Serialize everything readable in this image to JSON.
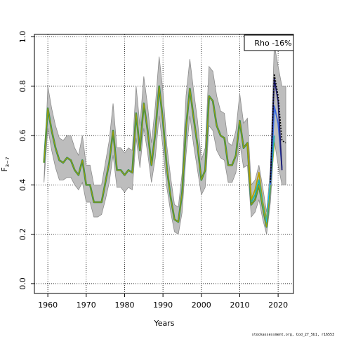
{
  "chart_data": {
    "type": "line",
    "title": "",
    "xlabel": "Years",
    "ylabel_main": "F",
    "ylabel_sub": "3−7",
    "xlim": [
      1956.5,
      2024
    ],
    "ylim": [
      -0.04,
      1.01
    ],
    "xticks": [
      1960,
      1970,
      1980,
      1990,
      2000,
      2010,
      2020
    ],
    "yticks": [
      0.0,
      0.2,
      0.4,
      0.6,
      0.8,
      1.0
    ],
    "ytick_labels": [
      "0.0",
      "0.2",
      "0.4",
      "0.6",
      "0.8",
      "1.0"
    ],
    "grid": true,
    "legend_text": "Rho -16%",
    "legend_position": "top-right",
    "footer": "stockassessment.org, Cod_27_5b1, r16553",
    "series": [
      {
        "name": "",
        "color": "#2e8b57",
        "x": [
          1959,
          1960,
          1961,
          1962,
          1963,
          1964,
          1965,
          1966,
          1967,
          1968,
          1969,
          1970,
          1971,
          1972,
          1973,
          1974,
          1975,
          1976,
          1977,
          1978,
          1979,
          1980,
          1981,
          1982,
          1983,
          1984,
          1985,
          1986,
          1987,
          1988,
          1989,
          1990,
          1991,
          1992,
          1993,
          1994,
          1995,
          1996,
          1997,
          1998,
          1999,
          2000,
          2001,
          2002,
          2003,
          2004,
          2005,
          2006,
          2007,
          2008,
          2009,
          2010,
          2011,
          2012,
          2013,
          2014,
          2015,
          2016,
          2017,
          2018
        ],
        "y": [
          0.49,
          0.71,
          0.62,
          0.55,
          0.5,
          0.49,
          0.51,
          0.5,
          0.46,
          0.44,
          0.5,
          0.4,
          0.4,
          0.33,
          0.33,
          0.33,
          0.41,
          0.49,
          0.62,
          0.46,
          0.46,
          0.44,
          0.46,
          0.45,
          0.69,
          0.54,
          0.73,
          0.62,
          0.48,
          0.61,
          0.8,
          0.66,
          0.47,
          0.35,
          0.26,
          0.25,
          0.37,
          0.63,
          0.79,
          0.67,
          0.56,
          0.42,
          0.46,
          0.76,
          0.74,
          0.64,
          0.6,
          0.59,
          0.48,
          0.48,
          0.52,
          0.66,
          0.55,
          0.57,
          0.32,
          0.34,
          0.4,
          0.31,
          0.23,
          0.4
        ]
      },
      {
        "name": "",
        "color": "#b8a100",
        "x": [
          2012,
          2013,
          2014,
          2015,
          2016,
          2017,
          2018,
          2019
        ],
        "y": [
          0.57,
          0.34,
          0.38,
          0.45,
          0.33,
          0.26,
          0.4,
          0.57
        ]
      },
      {
        "name": "",
        "color": "#20b2aa",
        "x": [
          2013,
          2014,
          2015,
          2016,
          2017,
          2018,
          2019
        ],
        "y": [
          0.33,
          0.36,
          0.42,
          0.32,
          0.24,
          0.4,
          0.6
        ]
      },
      {
        "name": "",
        "color": "#00bfff",
        "x": [
          2017,
          2018,
          2019
        ],
        "y": [
          0.25,
          0.42,
          0.7
        ]
      },
      {
        "name": "",
        "color": "#4169e1",
        "x": [
          2018,
          2019,
          2020,
          2021
        ],
        "y": [
          0.4,
          0.72,
          0.65,
          0.47
        ]
      },
      {
        "name": "",
        "color": "#1a1a6e",
        "x": [
          2018,
          2019,
          2020,
          2021
        ],
        "y": [
          0.42,
          0.83,
          0.74,
          0.46
        ]
      }
    ],
    "base_ci": {
      "x": [
        1959,
        1960,
        1961,
        1962,
        1963,
        1964,
        1965,
        1966,
        1967,
        1968,
        1969,
        1970,
        1971,
        1972,
        1973,
        1974,
        1975,
        1976,
        1977,
        1978,
        1979,
        1980,
        1981,
        1982,
        1983,
        1984,
        1985,
        1986,
        1987,
        1988,
        1989,
        1990,
        1991,
        1992,
        1993,
        1994,
        1995,
        1996,
        1997,
        1998,
        1999,
        2000,
        2001,
        2002,
        2003,
        2004,
        2005,
        2006,
        2007,
        2008,
        2009,
        2010,
        2011,
        2012,
        2013,
        2014,
        2015,
        2016,
        2017,
        2018,
        2019,
        2020,
        2021,
        2022
      ],
      "lower": [
        0.41,
        0.63,
        0.54,
        0.47,
        0.42,
        0.42,
        0.43,
        0.43,
        0.4,
        0.38,
        0.41,
        0.33,
        0.33,
        0.27,
        0.27,
        0.28,
        0.34,
        0.41,
        0.52,
        0.39,
        0.39,
        0.37,
        0.39,
        0.38,
        0.59,
        0.47,
        0.63,
        0.53,
        0.41,
        0.51,
        0.68,
        0.55,
        0.39,
        0.29,
        0.21,
        0.2,
        0.29,
        0.52,
        0.68,
        0.56,
        0.46,
        0.36,
        0.39,
        0.64,
        0.62,
        0.54,
        0.51,
        0.5,
        0.41,
        0.41,
        0.45,
        0.57,
        0.47,
        0.48,
        0.27,
        0.29,
        0.34,
        0.26,
        0.2,
        0.33,
        0.58,
        0.48,
        0.4,
        0.4
      ],
      "upper": [
        0.42,
        0.8,
        0.71,
        0.64,
        0.59,
        0.58,
        0.6,
        0.6,
        0.55,
        0.52,
        0.6,
        0.48,
        0.48,
        0.4,
        0.4,
        0.4,
        0.49,
        0.58,
        0.73,
        0.55,
        0.55,
        0.53,
        0.55,
        0.54,
        0.8,
        0.64,
        0.84,
        0.72,
        0.57,
        0.72,
        0.92,
        0.78,
        0.56,
        0.43,
        0.32,
        0.31,
        0.45,
        0.76,
        0.91,
        0.78,
        0.66,
        0.5,
        0.55,
        0.88,
        0.86,
        0.76,
        0.7,
        0.69,
        0.57,
        0.56,
        0.62,
        0.77,
        0.65,
        0.67,
        0.4,
        0.42,
        0.48,
        0.39,
        0.29,
        0.47,
        0.97,
        0.88,
        0.8,
        0.8
      ]
    },
    "base_dashed": {
      "x": [
        2018,
        2019,
        2020,
        2021,
        2022
      ],
      "y": [
        0.41,
        0.85,
        0.76,
        0.58,
        0.57
      ]
    }
  }
}
